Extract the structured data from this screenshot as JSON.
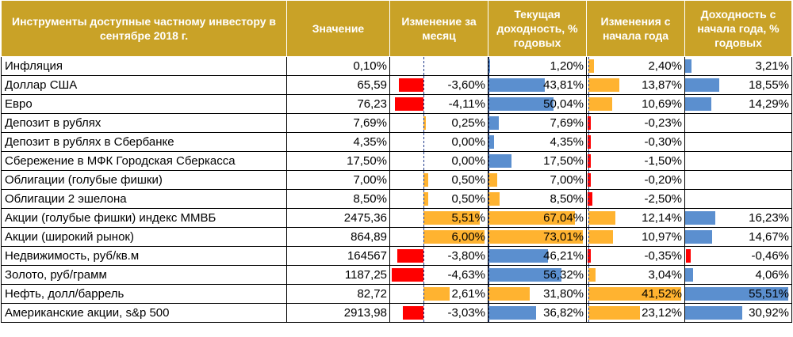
{
  "headers": [
    "Инструменты доступные частному инвестору в сентябре 2018 г.",
    "Значение",
    "Изменение за месяц",
    "Текущая доходность, % годовых",
    "Изменения с начала года",
    "Доходность с начала года, % годовых"
  ],
  "colors": {
    "header_bg": "#c9a227",
    "negative": "#ff0000",
    "positive_orange": "#ffb330",
    "positive_blue": "#5b8fcf"
  },
  "rows": [
    {
      "name": "Инфляция",
      "value": "0,10%",
      "month": "",
      "current": "1,20%",
      "ytd": "2,40%",
      "ytd_yield": "3,21%"
    },
    {
      "name": "Доллар США",
      "value": "65,59",
      "month": "-3,60%",
      "current": "43,81%",
      "ytd": "13,87%",
      "ytd_yield": "18,55%"
    },
    {
      "name": "Евро",
      "value": "76,23",
      "month": "-4,11%",
      "current": "50,04%",
      "ytd": "10,69%",
      "ytd_yield": "14,29%"
    },
    {
      "name": "Депозит в рублях",
      "value": "7,69%",
      "month": "0,25%",
      "current": "7,69%",
      "ytd": "-0,23%",
      "ytd_yield": ""
    },
    {
      "name": "Депозит в рублях в Сбербанке",
      "value": "4,35%",
      "month": "0,00%",
      "current": "4,35%",
      "ytd": "-0,30%",
      "ytd_yield": ""
    },
    {
      "name": "Сбережение в МФК Городская Сберкасса",
      "value": "17,50%",
      "month": "0,00%",
      "current": "17,50%",
      "ytd": "-1,50%",
      "ytd_yield": ""
    },
    {
      "name": "Облигации (голубые фишки)",
      "value": "7,00%",
      "month": "0,50%",
      "current": "7,00%",
      "ytd": "-0,20%",
      "ytd_yield": ""
    },
    {
      "name": "Облигации 2 эшелона",
      "value": "8,50%",
      "month": "0,50%",
      "current": "8,50%",
      "ytd": "-2,50%",
      "ytd_yield": ""
    },
    {
      "name": "Акции (голубые фишки) индекс ММВБ",
      "value": "2475,36",
      "month": "5,51%",
      "current": "67,04%",
      "ytd": "12,14%",
      "ytd_yield": "16,23%"
    },
    {
      "name": "Акции (широкий рынок)",
      "value": "864,89",
      "month": "6,00%",
      "current": "73,01%",
      "ytd": "10,97%",
      "ytd_yield": "14,67%"
    },
    {
      "name": "Недвижимость, руб/кв.м",
      "value": "164567",
      "month": "-3,80%",
      "current": "46,21%",
      "ytd": "-0,35%",
      "ytd_yield": "-0,46%"
    },
    {
      "name": "Золото, руб/грамм",
      "value": "1187,25",
      "month": "-4,63%",
      "current": "56,32%",
      "ytd": "3,04%",
      "ytd_yield": "4,06%"
    },
    {
      "name": "Нефть, долл/баррель",
      "value": "82,72",
      "month": "2,61%",
      "current": "31,80%",
      "ytd": "41,52%",
      "ytd_yield": "55,51%"
    },
    {
      "name": "Американские акции, s&p 500",
      "value": "2913,98",
      "month": "-3,03%",
      "current": "36,82%",
      "ytd": "23,12%",
      "ytd_yield": "30,92%"
    }
  ]
}
